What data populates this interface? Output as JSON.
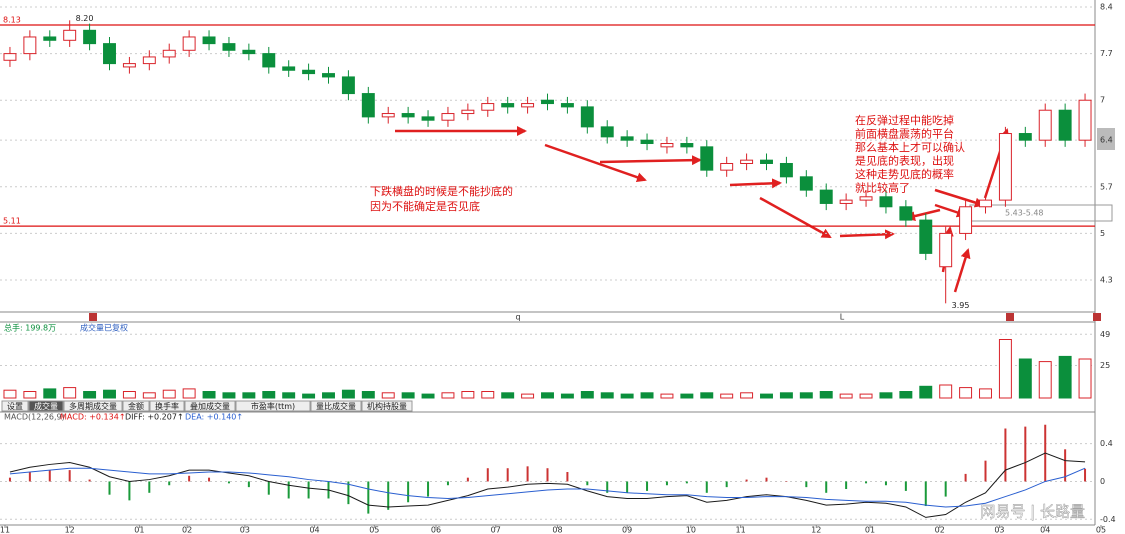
{
  "chart_data": [
    {
      "type": "candlestick",
      "open": [
        7.6,
        7.7,
        7.95,
        7.9,
        8.05,
        7.85,
        7.5,
        7.55,
        7.65,
        7.75,
        7.95,
        7.85,
        7.75,
        7.7,
        7.5,
        7.45,
        7.4,
        7.35,
        7.1,
        6.75,
        6.8,
        6.75,
        6.7,
        6.8,
        6.85,
        6.95,
        6.9,
        7.0,
        6.95,
        6.9,
        6.6,
        6.45,
        6.4,
        6.3,
        6.35,
        6.3,
        5.95,
        6.05,
        6.1,
        6.05,
        5.85,
        5.65,
        5.45,
        5.5,
        5.55,
        5.4,
        5.2,
        4.5,
        5.0,
        5.4,
        5.5,
        6.5,
        6.4,
        6.85,
        6.4
      ],
      "high": [
        7.8,
        8.05,
        8.05,
        8.2,
        8.15,
        7.95,
        7.65,
        7.75,
        7.85,
        8.05,
        8.05,
        7.95,
        7.85,
        7.8,
        7.6,
        7.55,
        7.5,
        7.45,
        7.2,
        6.9,
        6.9,
        6.85,
        6.9,
        6.95,
        7.05,
        7.05,
        7.05,
        7.1,
        7.05,
        7.0,
        6.7,
        6.55,
        6.5,
        6.45,
        6.45,
        6.4,
        6.15,
        6.2,
        6.2,
        6.15,
        5.95,
        5.75,
        5.6,
        5.65,
        5.65,
        5.5,
        5.3,
        5.1,
        5.5,
        5.6,
        6.6,
        6.6,
        6.95,
        6.95,
        7.1
      ],
      "low": [
        7.5,
        7.6,
        7.8,
        7.8,
        7.75,
        7.45,
        7.4,
        7.45,
        7.55,
        7.65,
        7.75,
        7.65,
        7.6,
        7.4,
        7.35,
        7.3,
        7.25,
        7.0,
        6.65,
        6.65,
        6.65,
        6.6,
        6.6,
        6.7,
        6.75,
        6.8,
        6.8,
        6.85,
        6.8,
        6.5,
        6.35,
        6.3,
        6.25,
        6.2,
        6.2,
        5.85,
        5.85,
        5.95,
        5.95,
        5.75,
        5.55,
        5.35,
        5.35,
        5.4,
        5.3,
        5.1,
        4.6,
        3.95,
        4.9,
        5.3,
        5.4,
        6.3,
        6.3,
        6.3,
        6.3
      ],
      "close": [
        7.7,
        7.95,
        7.9,
        8.05,
        7.85,
        7.55,
        7.55,
        7.65,
        7.75,
        7.95,
        7.85,
        7.75,
        7.7,
        7.5,
        7.45,
        7.4,
        7.35,
        7.1,
        6.75,
        6.8,
        6.75,
        6.7,
        6.8,
        6.85,
        6.95,
        6.9,
        6.95,
        6.95,
        6.9,
        6.6,
        6.45,
        6.4,
        6.35,
        6.35,
        6.3,
        5.95,
        6.05,
        6.1,
        6.05,
        5.85,
        5.65,
        5.45,
        5.5,
        5.55,
        5.4,
        5.2,
        4.7,
        5.0,
        5.4,
        5.5,
        6.5,
        6.4,
        6.85,
        6.4,
        7.0
      ],
      "ylim": [
        3.88,
        8.4
      ],
      "yticks": [
        8.4,
        7.7,
        7.0,
        6.4,
        5.7,
        5.0,
        4.3
      ],
      "up_color": "#d9232a",
      "down_color": "#0b8f3c",
      "grid": true,
      "levels": [
        {
          "value": 8.13,
          "label": "8.13"
        },
        {
          "value": 5.11,
          "label": "5.11"
        }
      ],
      "peak_label": "8.20",
      "trough_label": "3.95",
      "range_label": "5.43-5.48",
      "notes_left": [
        "下跌横盘的时候是不能抄底的",
        "因为不能确定是否见底"
      ],
      "notes_right": [
        "在反弹过程中能吃掉",
        "前面横盘震荡的平台",
        "那么基本上才可以确认",
        "是见底的表现，出现",
        "这种走势见底的概率",
        "就比较高了"
      ],
      "markers": [
        "q",
        "L"
      ]
    },
    {
      "type": "volume",
      "title": "总手: 199.8万",
      "subtitle": "成交量已复权",
      "values": [
        6,
        5,
        7,
        8,
        5,
        6,
        5,
        4,
        6,
        7,
        5,
        4,
        4,
        5,
        4,
        3,
        4,
        6,
        5,
        4,
        4,
        3,
        4,
        5,
        5,
        4,
        3,
        4,
        3,
        5,
        4,
        3,
        4,
        3,
        3,
        4,
        3,
        4,
        3,
        4,
        4,
        5,
        3,
        3,
        4,
        5,
        9,
        10,
        8,
        7,
        45,
        30,
        28,
        32,
        30
      ],
      "ylim": [
        0,
        50
      ],
      "yticks": [
        25,
        49
      ]
    },
    {
      "type": "macd",
      "title": "MACD(12,26,9)",
      "legend": [
        "MACD: +0.134↑",
        "DIFF: +0.207↑",
        "DEA: +0.140↑"
      ],
      "macd": [
        0.04,
        0.1,
        0.12,
        0.12,
        0.02,
        -0.14,
        -0.2,
        -0.12,
        -0.04,
        0.06,
        0.04,
        -0.02,
        -0.06,
        -0.14,
        -0.18,
        -0.18,
        -0.18,
        -0.24,
        -0.34,
        -0.3,
        -0.22,
        -0.16,
        -0.04,
        0.04,
        0.14,
        0.14,
        0.16,
        0.14,
        0.1,
        -0.04,
        -0.12,
        -0.12,
        -0.1,
        -0.04,
        -0.02,
        -0.12,
        -0.06,
        0.02,
        0.04,
        0.0,
        -0.06,
        -0.12,
        -0.08,
        -0.02,
        -0.04,
        -0.1,
        -0.26,
        -0.16,
        0.08,
        0.22,
        0.56,
        0.58,
        0.6,
        0.34,
        0.134
      ],
      "diff": [
        0.1,
        0.15,
        0.18,
        0.2,
        0.15,
        0.05,
        0.0,
        0.02,
        0.06,
        0.12,
        0.12,
        0.09,
        0.06,
        0.0,
        -0.04,
        -0.07,
        -0.09,
        -0.15,
        -0.25,
        -0.27,
        -0.26,
        -0.25,
        -0.2,
        -0.15,
        -0.08,
        -0.06,
        -0.03,
        -0.02,
        -0.03,
        -0.1,
        -0.16,
        -0.18,
        -0.18,
        -0.16,
        -0.15,
        -0.22,
        -0.2,
        -0.16,
        -0.14,
        -0.16,
        -0.2,
        -0.25,
        -0.24,
        -0.22,
        -0.23,
        -0.27,
        -0.38,
        -0.35,
        -0.22,
        -0.12,
        0.12,
        0.2,
        0.3,
        0.22,
        0.207
      ],
      "dea": [
        0.08,
        0.1,
        0.12,
        0.14,
        0.14,
        0.12,
        0.1,
        0.08,
        0.08,
        0.09,
        0.1,
        0.1,
        0.09,
        0.07,
        0.05,
        0.02,
        0.0,
        -0.03,
        -0.08,
        -0.12,
        -0.15,
        -0.17,
        -0.18,
        -0.17,
        -0.15,
        -0.13,
        -0.11,
        -0.09,
        -0.08,
        -0.08,
        -0.1,
        -0.12,
        -0.13,
        -0.14,
        -0.14,
        -0.16,
        -0.17,
        -0.17,
        -0.16,
        -0.16,
        -0.17,
        -0.19,
        -0.2,
        -0.21,
        -0.21,
        -0.22,
        -0.25,
        -0.27,
        -0.26,
        -0.23,
        -0.16,
        -0.09,
        0.0,
        0.05,
        0.14
      ],
      "diff_color": "#1a1a1a",
      "dea_color": "#2a5fd0",
      "ylim": [
        -0.45,
        0.65
      ],
      "yticks": [
        -0.4,
        0,
        0.4
      ]
    }
  ],
  "xticks": [
    {
      "value": -0.25,
      "label": "11"
    },
    {
      "value": 3.0,
      "label": "12"
    },
    {
      "value": 6.5,
      "label": "01"
    },
    {
      "value": 8.9,
      "label": "02"
    },
    {
      "value": 11.8,
      "label": "03"
    },
    {
      "value": 15.3,
      "label": "04"
    },
    {
      "value": 18.3,
      "label": "05"
    },
    {
      "value": 21.4,
      "label": "06"
    },
    {
      "value": 24.4,
      "label": "07"
    },
    {
      "value": 27.5,
      "label": "08"
    },
    {
      "value": 31.0,
      "label": "09"
    },
    {
      "value": 34.2,
      "label": "10"
    },
    {
      "value": 36.7,
      "label": "11"
    },
    {
      "value": 40.5,
      "label": "12"
    },
    {
      "value": 43.2,
      "label": "01"
    },
    {
      "value": 46.7,
      "label": "02"
    },
    {
      "value": 49.7,
      "label": "03"
    },
    {
      "value": 52.0,
      "label": "04"
    },
    {
      "value": 54.8,
      "label": "05"
    }
  ],
  "tabs": [
    "设置",
    "成交量",
    "多周期成交量",
    "金额",
    "换手率",
    "叠加成交量",
    "市盈率(ttm)",
    "量比成交量",
    "机构持股量"
  ],
  "watermark": "网易号 | 长路量"
}
